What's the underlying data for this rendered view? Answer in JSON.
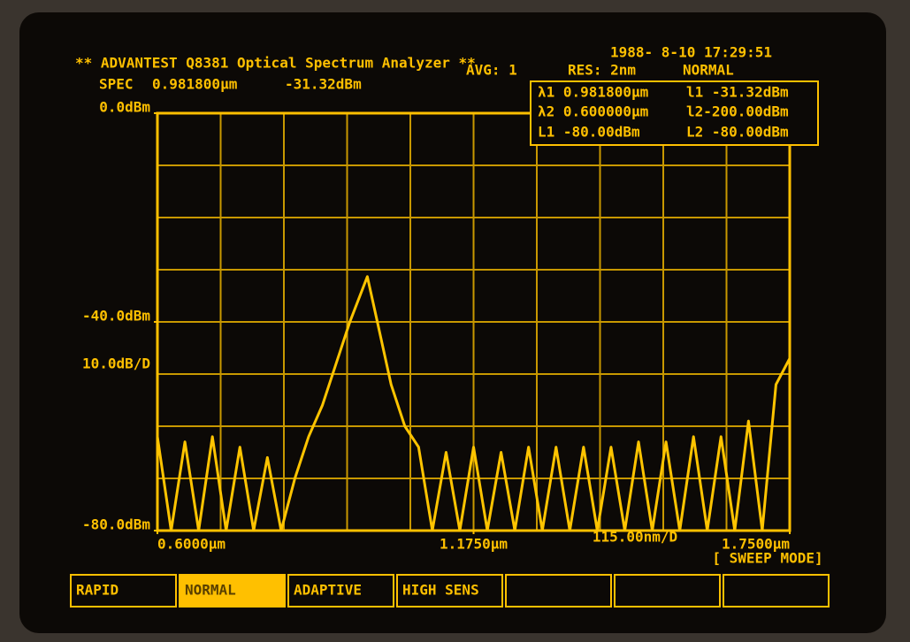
{
  "header": {
    "title": "** ADVANTEST Q8381 Optical Spectrum Analyzer **",
    "datetime": "1988- 8-10 17:29:51",
    "spec_label": "SPEC",
    "spec_wavelength": "0.981800µm",
    "spec_level": "-31.32dBm",
    "avg": "AVG: 1",
    "res": "RES:  2nm",
    "mode": "NORMAL"
  },
  "markers": [
    [
      "λ1 0.981800µm",
      "l1 -31.32dBm"
    ],
    [
      "λ2 0.600000µm",
      "l2-200.00dBm"
    ],
    [
      "L1  -80.00dBm",
      "L2 -80.00dBm"
    ]
  ],
  "chart_data": {
    "type": "line",
    "x": [
      0.6,
      0.625,
      0.65,
      0.675,
      0.7,
      0.725,
      0.75,
      0.775,
      0.8,
      0.825,
      0.85,
      0.875,
      0.9,
      0.925,
      0.95,
      0.9818,
      1.0,
      1.025,
      1.05,
      1.075,
      1.1,
      1.125,
      1.15,
      1.175,
      1.2,
      1.225,
      1.25,
      1.275,
      1.3,
      1.325,
      1.35,
      1.375,
      1.4,
      1.425,
      1.45,
      1.475,
      1.5,
      1.525,
      1.55,
      1.575,
      1.6,
      1.625,
      1.65,
      1.675,
      1.7,
      1.725,
      1.75
    ],
    "series": [
      {
        "color": "#ffc400",
        "values": [
          -62,
          -80,
          -63,
          -80,
          -62,
          -80,
          -64,
          -80,
          -66,
          -80,
          -70,
          -62,
          -56,
          -48,
          -40,
          -31.32,
          -40,
          -52,
          -60,
          -64,
          -80,
          -65,
          -80,
          -64,
          -80,
          -65,
          -80,
          -64,
          -80,
          -64,
          -80,
          -64,
          -80,
          -64,
          -80,
          -63,
          -80,
          -63,
          -80,
          -62,
          -80,
          -62,
          -80,
          -59,
          -80,
          -52,
          -47
        ]
      }
    ],
    "xlim": [
      0.6,
      1.75
    ],
    "ylim": [
      -80,
      0
    ],
    "xticks": [
      {
        "value": 0.6,
        "label": "0.6000µm"
      },
      {
        "value": 1.175,
        "label": "1.1750µm"
      },
      {
        "value": 1.75,
        "label": "1.7500µm"
      }
    ],
    "yticks": [
      {
        "value": 0,
        "label": "0.0dBm"
      },
      {
        "value": -40,
        "label": "-40.0dBm"
      },
      {
        "value": -80,
        "label": "-80.0dBm"
      }
    ],
    "scale_y": "10.0dB/D",
    "scale_x": "115.00nm/D",
    "grid": true
  },
  "softkeys": {
    "section": "[ SWEEP MODE]",
    "keys": [
      "RAPID",
      "NORMAL",
      "ADAPTIVE",
      "HIGH SENS"
    ]
  }
}
